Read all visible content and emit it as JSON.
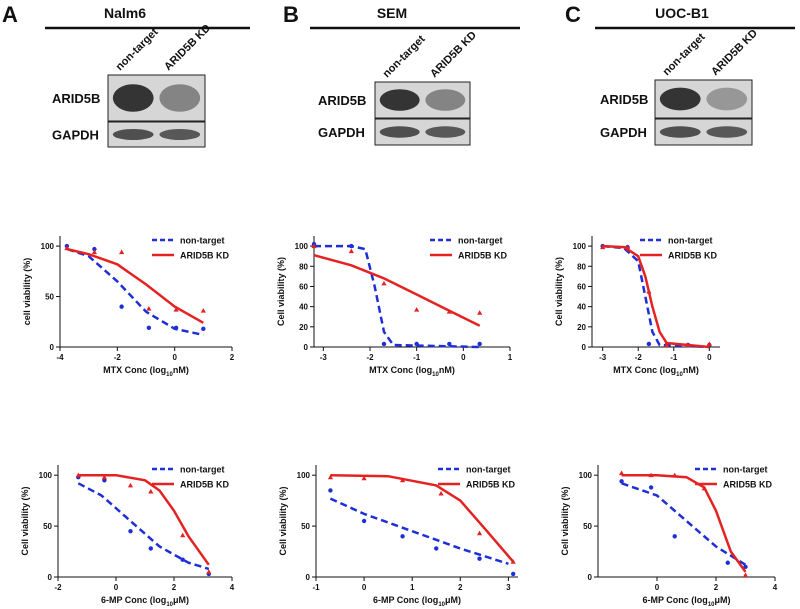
{
  "panels": [
    {
      "letter": "A",
      "title": "Nalm6",
      "lanes": [
        "non-target",
        "ARID5B KD"
      ],
      "blots": [
        "ARID5B",
        "GAPDH"
      ]
    },
    {
      "letter": "B",
      "title": "SEM",
      "lanes": [
        "non-target",
        "ARID5B KD"
      ],
      "blots": [
        "ARID5B",
        "GAPDH"
      ]
    },
    {
      "letter": "C",
      "title": "UOC-B1",
      "lanes": [
        "non-target",
        "ARID5B KD"
      ],
      "blots": [
        "ARID5B",
        "GAPDH"
      ]
    }
  ],
  "chart_data": [
    {
      "type": "line",
      "ylabel": "cell viability (%)",
      "xlabel": [
        "MTX Conc (log",
        "10",
        "nM)"
      ],
      "xlim": [
        -4,
        2
      ],
      "xticks": [
        -4,
        -2,
        0,
        2
      ],
      "ylim": [
        0,
        110
      ],
      "yticks": [
        0,
        50,
        100
      ],
      "legend": "upper right",
      "series": [
        {
          "name": "non-target",
          "color": "#1f2fd8",
          "x": [
            -3.76,
            -2.8,
            -1.85,
            -0.9,
            0.05,
            1.0
          ],
          "values": [
            100,
            97,
            40,
            19,
            19,
            18
          ],
          "fit": {
            "x": [
              -3.75,
              -3,
              -2,
              -1,
              0,
              1
            ],
            "values": [
              97,
              90,
              65,
              35,
              18,
              12
            ]
          }
        },
        {
          "name": "ARID5B KD",
          "color": "#e52222",
          "x": [
            -3.76,
            -2.8,
            -1.85,
            -0.9,
            0.05,
            1.0
          ],
          "values": [
            98,
            94,
            94,
            38,
            37,
            36
          ],
          "fit": {
            "x": [
              -3.75,
              -3,
              -2,
              -1,
              0,
              1
            ],
            "values": [
              97,
              92,
              82,
              62,
              40,
              24
            ]
          }
        }
      ]
    },
    {
      "type": "line",
      "ylabel": "Cell viability (%)",
      "xlabel": [
        "MTX Conc (log",
        "10",
        "nM)"
      ],
      "xlim": [
        -3.2,
        1
      ],
      "xticks": [
        -3,
        -2,
        -1,
        0,
        1
      ],
      "ylim": [
        0,
        110
      ],
      "yticks": [
        0,
        20,
        40,
        60,
        80,
        100
      ],
      "legend": "upper right",
      "series": [
        {
          "name": "non-target",
          "color": "#1f2fd8",
          "x": [
            -3.2,
            -2.4,
            -1.7,
            -1.0,
            -0.3,
            0.35
          ],
          "values": [
            102,
            100,
            3,
            3,
            3,
            3
          ],
          "fit": {
            "x": [
              -3.2,
              -2.4,
              -2.1,
              -1.9,
              -1.7,
              -1.5,
              0.35
            ],
            "values": [
              100,
              100,
              97,
              60,
              15,
              2,
              0
            ]
          }
        },
        {
          "name": "ARID5B KD",
          "color": "#e52222",
          "x": [
            -3.2,
            -2.4,
            -1.7,
            -1.0,
            -0.3,
            0.35
          ],
          "values": [
            100,
            95,
            63,
            37,
            35,
            34
          ],
          "fit": {
            "x": [
              -3.2,
              -2.4,
              -1.7,
              -1,
              -0.3,
              0.35
            ],
            "values": [
              91,
              81,
              68,
              52,
              36,
              21
            ]
          }
        }
      ]
    },
    {
      "type": "line",
      "ylabel": "Cell viability (%)",
      "xlabel": [
        "MTX Conc (log",
        "10",
        "nM)"
      ],
      "xlim": [
        -3.3,
        0.3
      ],
      "xticks": [
        -3,
        -2,
        -1,
        0
      ],
      "ylim": [
        0,
        110
      ],
      "yticks": [
        0,
        20,
        40,
        60,
        80,
        100
      ],
      "legend": "upper right",
      "series": [
        {
          "name": "non-target",
          "color": "#1f2fd8",
          "x": [
            -3,
            -2.3,
            -1.7,
            -1.2,
            -0.6,
            0
          ],
          "values": [
            100,
            99,
            3,
            2,
            2,
            2
          ],
          "fit": {
            "x": [
              -3,
              -2.4,
              -2,
              -1.8,
              -1.6,
              -1.4,
              0
            ],
            "values": [
              100,
              98,
              85,
              50,
              15,
              2,
              0
            ]
          }
        },
        {
          "name": "ARID5B KD",
          "color": "#e52222",
          "x": [
            -3,
            -2.3,
            -1.7,
            -1.2,
            -0.6,
            0
          ],
          "values": [
            99,
            99,
            55,
            2,
            2,
            3
          ],
          "fit": {
            "x": [
              -3,
              -2.4,
              -2,
              -1.8,
              -1.6,
              -1.4,
              -1.2,
              0
            ],
            "values": [
              100,
              99,
              90,
              70,
              40,
              15,
              4,
              0
            ]
          }
        }
      ]
    },
    {
      "type": "line",
      "ylabel": "Cell viability (%)",
      "xlabel": [
        "6-MP Conc (log",
        "10",
        "μM)"
      ],
      "xlim": [
        -2,
        4
      ],
      "xticks": [
        -2,
        0,
        2,
        4
      ],
      "ylim": [
        0,
        110
      ],
      "yticks": [
        0,
        50,
        100
      ],
      "legend": "upper right",
      "series": [
        {
          "name": "non-target",
          "color": "#1f2fd8",
          "x": [
            -1.3,
            -0.4,
            0.5,
            1.2,
            2.3,
            3.2
          ],
          "values": [
            98,
            95,
            45,
            28,
            17,
            3
          ],
          "fit": {
            "x": [
              -1.3,
              -0.5,
              0.5,
              1.5,
              2.5,
              3.2
            ],
            "values": [
              92,
              80,
              55,
              30,
              14,
              8
            ]
          }
        },
        {
          "name": "ARID5B KD",
          "color": "#e52222",
          "x": [
            -1.3,
            -0.4,
            0.5,
            1.2,
            2.3,
            3.2
          ],
          "values": [
            100,
            98,
            90,
            84,
            41,
            5
          ],
          "fit": {
            "x": [
              -1.3,
              0,
              1,
              1.5,
              2,
              2.5,
              3.2
            ],
            "values": [
              100,
              100,
              95,
              85,
              65,
              40,
              12
            ]
          }
        }
      ]
    },
    {
      "type": "line",
      "ylabel": "Cell viability (%)",
      "xlabel": [
        "6-MP Conc (log",
        "10",
        "μM)"
      ],
      "xlim": [
        -1,
        3.2
      ],
      "xticks": [
        -1,
        0,
        1,
        2,
        3
      ],
      "ylim": [
        0,
        110
      ],
      "yticks": [
        0,
        50,
        100
      ],
      "legend": "upper right",
      "series": [
        {
          "name": "non-target",
          "color": "#1f2fd8",
          "x": [
            -0.7,
            0,
            0.8,
            1.5,
            2.4,
            3.1
          ],
          "values": [
            85,
            55,
            40,
            28,
            18,
            3
          ],
          "fit": {
            "x": [
              -0.7,
              0,
              1,
              2,
              3
            ],
            "values": [
              77,
              62,
              45,
              28,
              13
            ]
          }
        },
        {
          "name": "ARID5B KD",
          "color": "#e52222",
          "x": [
            -0.7,
            0,
            0.8,
            1.6,
            2.4,
            3.1
          ],
          "values": [
            98,
            97,
            95,
            82,
            43,
            15
          ],
          "fit": {
            "x": [
              -0.7,
              0.5,
              1.5,
              2,
              2.5,
              3.1
            ],
            "values": [
              100,
              99,
              90,
              75,
              48,
              15
            ]
          }
        }
      ]
    },
    {
      "type": "line",
      "ylabel": "Cell viability (%)",
      "xlabel": [
        "6-MP Conc (log",
        "10",
        "μM)"
      ],
      "xlim": [
        -2,
        4
      ],
      "xticks": [
        0,
        2,
        4
      ],
      "ylim": [
        0,
        110
      ],
      "yticks": [
        0,
        50,
        100
      ],
      "legend": "upper right",
      "series": [
        {
          "name": "non-target",
          "color": "#1f2fd8",
          "x": [
            -1.2,
            -0.2,
            0.6,
            2.4,
            3
          ],
          "values": [
            94,
            88,
            40,
            14,
            10
          ],
          "fit": {
            "x": [
              -1.2,
              0,
              1,
              2,
              3
            ],
            "values": [
              92,
              80,
              55,
              30,
              12
            ]
          }
        },
        {
          "name": "ARID5B KD",
          "color": "#e52222",
          "x": [
            -1.2,
            -0.2,
            0.6,
            1.6,
            3
          ],
          "values": [
            102,
            100,
            100,
            87,
            2
          ],
          "fit": {
            "x": [
              -1.2,
              0,
              1,
              1.6,
              2,
              2.5,
              3
            ],
            "values": [
              100,
              100,
              98,
              88,
              65,
              25,
              5
            ]
          }
        }
      ]
    }
  ]
}
